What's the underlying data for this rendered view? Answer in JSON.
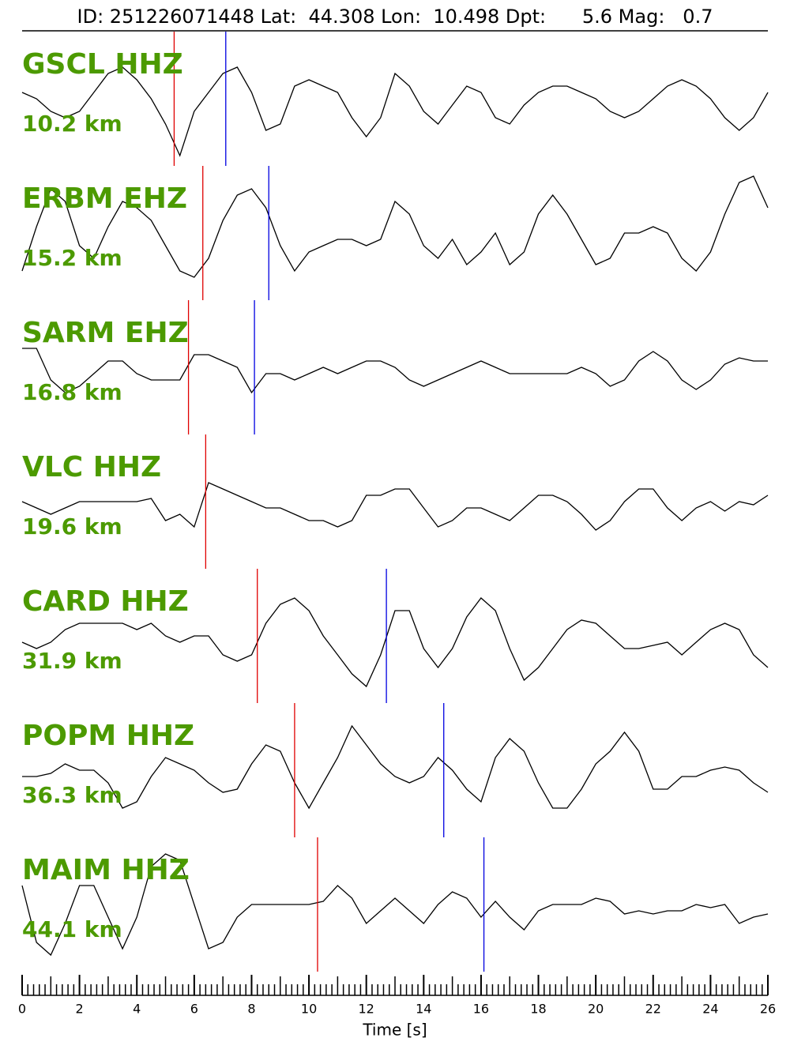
{
  "chart_data": {
    "type": "seismogram",
    "title": "ID: 251226071448 Lat:  44.308 Lon:  10.498 Dpt:      5.6 Mag:   0.7",
    "xlabel": "Time [s]",
    "xlim": [
      0,
      26
    ],
    "xticks": [
      0,
      2,
      4,
      6,
      8,
      10,
      12,
      14,
      16,
      18,
      20,
      22,
      24,
      26
    ],
    "xminorticks": [
      0,
      0.2,
      0.4,
      0.6,
      0.8,
      1,
      1.2,
      1.4,
      1.6,
      1.8,
      2,
      2.2,
      2.4,
      2.6,
      2.8,
      3,
      3.2,
      3.4,
      3.6,
      3.8,
      4,
      4.2,
      4.4,
      4.6,
      4.8,
      5,
      5.2,
      5.4,
      5.6,
      5.8,
      6,
      6.2,
      6.4,
      6.6,
      6.8,
      7,
      7.2,
      7.4,
      7.6,
      7.8,
      8,
      8.2,
      8.4,
      8.6,
      8.8,
      9,
      9.2,
      9.4,
      9.6,
      9.8,
      10,
      10.2,
      10.4,
      10.6,
      10.8,
      11,
      11.2,
      11.4,
      11.6,
      11.8,
      12,
      12.2,
      12.4,
      12.6,
      12.8,
      13,
      13.2,
      13.4,
      13.6,
      13.8,
      14,
      14.2,
      14.4,
      14.6,
      14.8,
      15,
      15.2,
      15.4,
      15.6,
      15.8,
      16,
      16.2,
      16.4,
      16.6,
      16.8,
      17,
      17.2,
      17.4,
      17.6,
      17.8,
      18,
      18.2,
      18.4,
      18.6,
      18.8,
      19,
      19.2,
      19.4,
      19.6,
      19.8,
      20,
      20.2,
      20.4,
      20.6,
      20.8,
      21,
      21.2,
      21.4,
      21.6,
      21.8,
      22,
      22.2,
      22.4,
      22.6,
      22.8,
      23,
      23.2,
      23.4,
      23.6,
      23.8,
      24,
      24.2,
      24.4,
      24.6,
      24.8,
      25,
      25.2,
      25.4,
      25.6,
      25.8,
      26
    ],
    "line_color": "#000000",
    "label_color": "#4c9a00",
    "p_color": "#e00000",
    "s_color": "#0000e0",
    "x": [
      0,
      0.5,
      1,
      1.5,
      2,
      2.5,
      3,
      3.5,
      4,
      4.5,
      5,
      5.5,
      6,
      6.5,
      7,
      7.5,
      8,
      8.5,
      9,
      9.5,
      10,
      10.5,
      11,
      11.5,
      12,
      12.5,
      13,
      13.5,
      14,
      14.5,
      15,
      15.5,
      16,
      16.5,
      17,
      17.5,
      18,
      18.5,
      19,
      19.5,
      20,
      20.5,
      21,
      21.5,
      22,
      22.5,
      23,
      23.5,
      24,
      24.5,
      25,
      25.5,
      26
    ],
    "traces": [
      {
        "name": "GSCL HHZ",
        "distance": "10.2 km",
        "p_pick": 5.3,
        "s_pick": 7.1,
        "values": [
          0.1,
          0,
          -0.2,
          -0.3,
          -0.2,
          0.1,
          0.4,
          0.5,
          0.3,
          0,
          -0.4,
          -0.9,
          -0.2,
          0.1,
          0.4,
          0.5,
          0.1,
          -0.5,
          -0.4,
          0.2,
          0.3,
          0.2,
          0.1,
          -0.3,
          -0.6,
          -0.3,
          0.4,
          0.2,
          -0.2,
          -0.4,
          -0.1,
          0.2,
          0.1,
          -0.3,
          -0.4,
          -0.1,
          0.1,
          0.2,
          0.2,
          0.1,
          0,
          -0.2,
          -0.3,
          -0.2,
          0,
          0.2,
          0.3,
          0.2,
          0,
          -0.3,
          -0.5,
          -0.3,
          0.1
        ]
      },
      {
        "name": "ERBM EHZ",
        "distance": "15.2 km",
        "p_pick": 6.3,
        "s_pick": 8.6,
        "values": [
          -0.6,
          0.1,
          0.7,
          0.5,
          -0.2,
          -0.4,
          0.1,
          0.5,
          0.4,
          0.2,
          -0.2,
          -0.6,
          -0.7,
          -0.4,
          0.2,
          0.6,
          0.7,
          0.4,
          -0.2,
          -0.6,
          -0.3,
          -0.2,
          -0.1,
          -0.1,
          -0.2,
          -0.1,
          0.5,
          0.3,
          -0.2,
          -0.4,
          -0.1,
          -0.5,
          -0.3,
          0,
          -0.5,
          -0.3,
          0.3,
          0.6,
          0.3,
          -0.1,
          -0.5,
          -0.4,
          0,
          0,
          0.1,
          0,
          -0.4,
          -0.6,
          -0.3,
          0.3,
          0.8,
          0.9,
          0.4
        ]
      },
      {
        "name": "SARM EHZ",
        "distance": "16.8 km",
        "p_pick": 5.8,
        "s_pick": 8.1,
        "values": [
          0.3,
          0.3,
          -0.2,
          -0.4,
          -0.3,
          -0.1,
          0.1,
          0.1,
          -0.1,
          -0.2,
          -0.2,
          -0.2,
          0.2,
          0.2,
          0.1,
          0,
          -0.4,
          -0.1,
          -0.1,
          -0.2,
          -0.1,
          0,
          -0.1,
          0,
          0.1,
          0.1,
          0,
          -0.2,
          -0.3,
          -0.2,
          -0.1,
          0,
          0.1,
          0,
          -0.1,
          -0.1,
          -0.1,
          -0.1,
          -0.1,
          0,
          -0.1,
          -0.3,
          -0.2,
          0.1,
          0.25,
          0.1,
          -0.2,
          -0.35,
          -0.2,
          0.05,
          0.15,
          0.1,
          0.1
        ]
      },
      {
        "name": "VLC HHZ",
        "distance": "19.6 km",
        "p_pick": 6.4,
        "values": [
          0,
          -0.1,
          -0.2,
          -0.1,
          0,
          0,
          0,
          0,
          0,
          0.05,
          -0.3,
          -0.2,
          -0.4,
          0.3,
          0.2,
          0.1,
          0,
          -0.1,
          -0.1,
          -0.2,
          -0.3,
          -0.3,
          -0.4,
          -0.3,
          0.1,
          0.1,
          0.2,
          0.2,
          -0.1,
          -0.4,
          -0.3,
          -0.1,
          -0.1,
          -0.2,
          -0.3,
          -0.1,
          0.1,
          0.1,
          0,
          -0.2,
          -0.45,
          -0.3,
          0,
          0.2,
          0.2,
          -0.1,
          -0.3,
          -0.1,
          0,
          -0.15,
          0,
          -0.05,
          0.1
        ]
      },
      {
        "name": "CARD HHZ",
        "distance": "31.9 km",
        "p_pick": 8.2,
        "s_pick": 12.7,
        "values": [
          -0.1,
          -0.2,
          -0.1,
          0.1,
          0.2,
          0.2,
          0.2,
          0.2,
          0.1,
          0.2,
          0,
          -0.1,
          0,
          0,
          -0.3,
          -0.4,
          -0.3,
          0.2,
          0.5,
          0.6,
          0.4,
          0,
          -0.3,
          -0.6,
          -0.8,
          -0.3,
          0.4,
          0.4,
          -0.2,
          -0.5,
          -0.2,
          0.3,
          0.6,
          0.4,
          -0.2,
          -0.7,
          -0.5,
          -0.2,
          0.1,
          0.25,
          0.2,
          0,
          -0.2,
          -0.2,
          -0.15,
          -0.1,
          -0.3,
          -0.1,
          0.1,
          0.2,
          0.1,
          -0.3,
          -0.5
        ]
      },
      {
        "name": "POPM HHZ",
        "distance": "36.3 km",
        "p_pick": 9.5,
        "s_pick": 14.7,
        "values": [
          -0.1,
          -0.1,
          -0.05,
          0.1,
          0,
          0,
          -0.2,
          -0.6,
          -0.5,
          -0.1,
          0.2,
          0.1,
          0,
          -0.2,
          -0.35,
          -0.3,
          0.1,
          0.4,
          0.3,
          -0.2,
          -0.6,
          -0.2,
          0.2,
          0.7,
          0.4,
          0.1,
          -0.1,
          -0.2,
          -0.1,
          0.2,
          0,
          -0.3,
          -0.5,
          0.2,
          0.5,
          0.3,
          -0.2,
          -0.6,
          -0.6,
          -0.3,
          0.1,
          0.3,
          0.6,
          0.3,
          -0.3,
          -0.3,
          -0.1,
          -0.1,
          0,
          0.05,
          0,
          -0.2,
          -0.35
        ]
      },
      {
        "name": "MAIM HHZ",
        "distance": "44.1 km",
        "p_pick": 10.3,
        "s_pick": 16.1,
        "values": [
          0.3,
          -0.6,
          -0.8,
          -0.3,
          0.3,
          0.3,
          -0.2,
          -0.7,
          -0.2,
          0.6,
          0.8,
          0.7,
          0,
          -0.7,
          -0.6,
          -0.2,
          0,
          0,
          0,
          0,
          0,
          0.05,
          0.3,
          0.1,
          -0.3,
          -0.1,
          0.1,
          -0.1,
          -0.3,
          0,
          0.2,
          0.1,
          -0.2,
          0.05,
          -0.2,
          -0.4,
          -0.1,
          0,
          0,
          0,
          0.1,
          0.05,
          -0.15,
          -0.1,
          -0.15,
          -0.1,
          -0.1,
          0,
          -0.05,
          0,
          -0.3,
          -0.2,
          -0.15
        ]
      }
    ]
  }
}
